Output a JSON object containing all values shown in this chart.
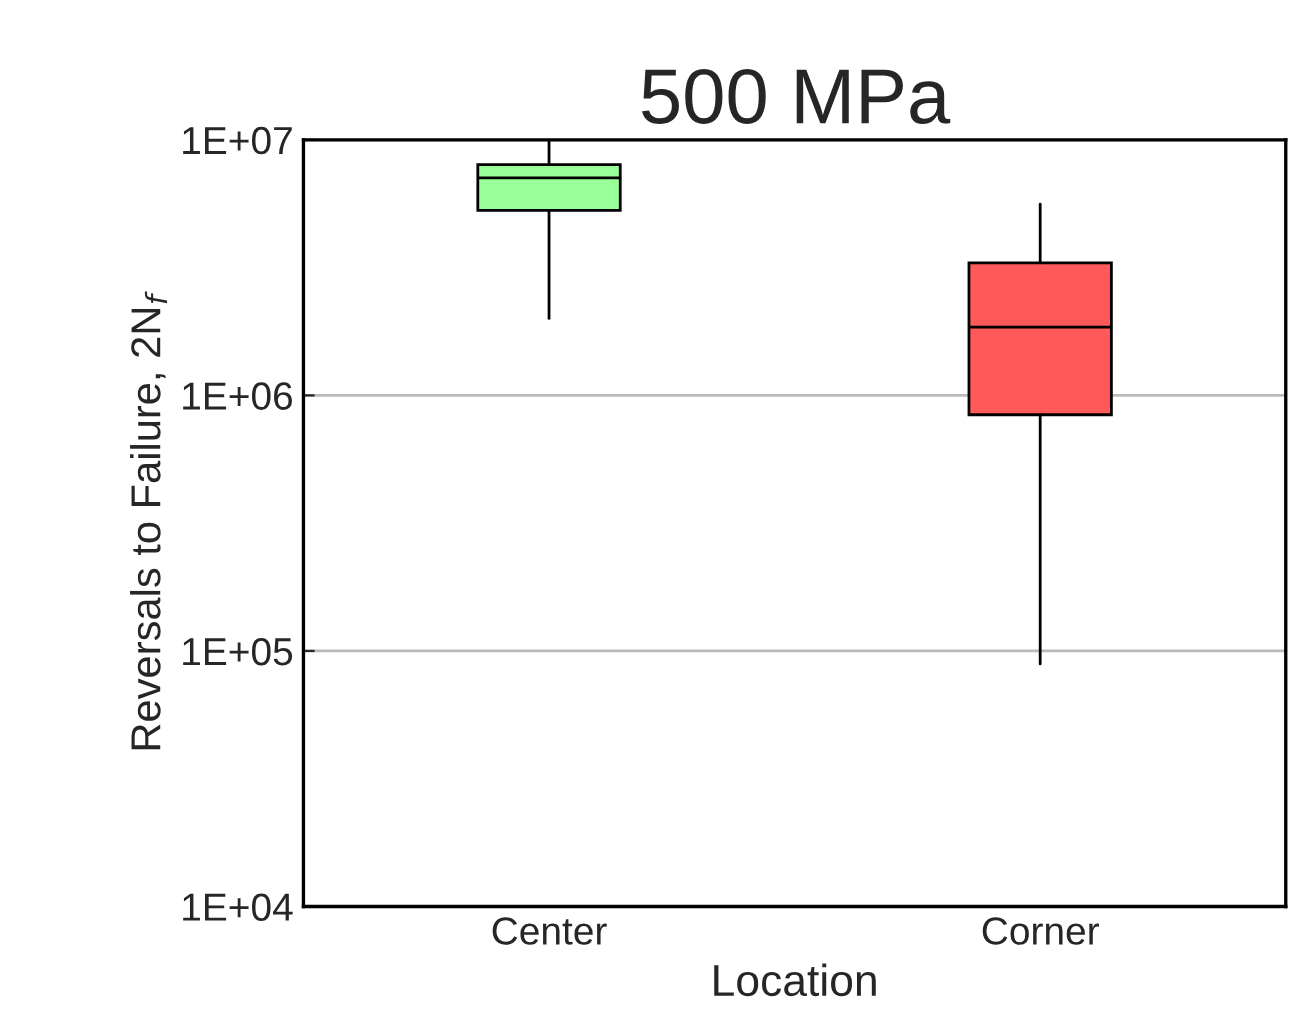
{
  "chart_data": {
    "type": "box",
    "title": "500 MPa",
    "xlabel": "Location",
    "ylabel": "Reversals to Failure, 2N$_{f}$",
    "categories": [
      "Center",
      "Corner"
    ],
    "boxes": [
      {
        "low": 2000000,
        "q1": 5300000,
        "median": 7100000,
        "q3": 8000000,
        "high": 10000000
      },
      {
        "low": 89000,
        "q1": 840000,
        "median": 1850000,
        "q3": 3300000,
        "high": 5600000
      }
    ],
    "colors": [
      "#99ff99",
      "#ff5959"
    ],
    "log": "y",
    "ylim": [
      10000,
      10000000
    ],
    "yticks": [
      {
        "value": 10000,
        "label": "1E+04"
      },
      {
        "value": 100000,
        "label": "1E+05"
      },
      {
        "value": 1000000,
        "label": "1E+06"
      },
      {
        "value": 10000000,
        "label": "1E+07"
      }
    ],
    "grid": "y"
  }
}
